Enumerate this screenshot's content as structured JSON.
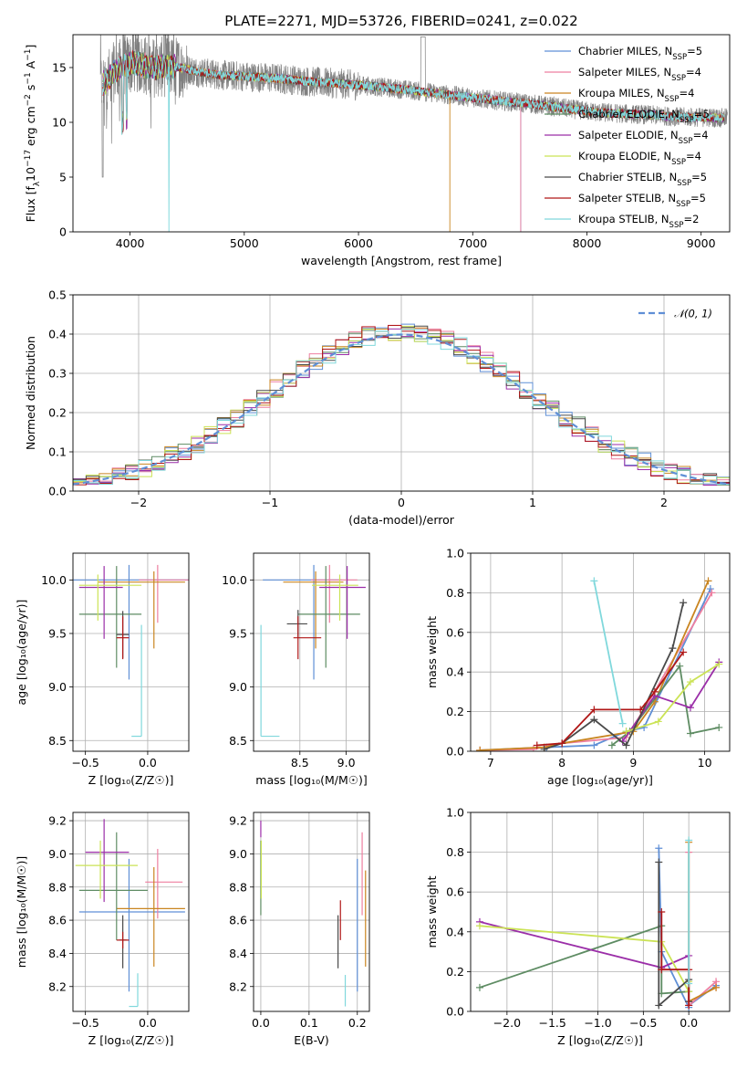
{
  "figure_title": "PLATE=2271, MJD=53726, FIBERID=0241, z=0.022",
  "colors": {
    "Chabrier MILES": "#5f8fd6",
    "Salpeter MILES": "#ee7fa0",
    "Kroupa MILES": "#c98520",
    "Chabrier ELODIE": "#5e8c63",
    "Salpeter ELODIE": "#9b2ea8",
    "Kroupa ELODIE": "#cbe355",
    "Chabrier STELIB": "#4a4a4a",
    "Salpeter STELIB": "#b01717",
    "Kroupa STELIB": "#80d8dc",
    "data": "#808080",
    "normal": "#5f8fd6",
    "orange_line": "#e07b3a"
  },
  "chart_data": [
    {
      "id": "spectrum",
      "type": "line",
      "title": "PLATE=2271, MJD=53726, FIBERID=0241, z=0.022",
      "xlabel": "wavelength [Angstrom, rest frame]",
      "ylabel_parts": [
        "Flux [f",
        "λ",
        "10",
        "−17",
        " erg cm",
        "−2",
        " s",
        "−1",
        " A",
        "−1",
        "]"
      ],
      "xlim": [
        3500,
        9250
      ],
      "ylim": [
        0,
        18
      ],
      "xticks": [
        4000,
        5000,
        6000,
        7000,
        8000,
        9000
      ],
      "yticks": [
        0,
        5,
        10,
        15
      ],
      "legend": [
        {
          "name": "Chabrier MILES",
          "nssp": "5"
        },
        {
          "name": "Salpeter MILES",
          "nssp": "4"
        },
        {
          "name": "Kroupa MILES",
          "nssp": "4"
        },
        {
          "name": "Chabrier ELODIE",
          "nssp": "5"
        },
        {
          "name": "Salpeter ELODIE",
          "nssp": "4"
        },
        {
          "name": "Kroupa ELODIE",
          "nssp": "4"
        },
        {
          "name": "Chabrier STELIB",
          "nssp": "5"
        },
        {
          "name": "Salpeter STELIB",
          "nssp": "5"
        },
        {
          "name": "Kroupa STELIB",
          "nssp": "2"
        }
      ],
      "continuum": {
        "x": [
          3760,
          3850,
          3950,
          4050,
          4200,
          4400,
          4600,
          4800,
          5000,
          5300,
          5600,
          6000,
          6400,
          6800,
          7200,
          7500,
          7800,
          8100,
          8500,
          8800,
          9200
        ],
        "y": [
          13.5,
          14.5,
          15.2,
          15.4,
          15.0,
          15.1,
          14.6,
          14.3,
          14.2,
          14.0,
          13.7,
          13.4,
          13.0,
          12.5,
          12.0,
          11.7,
          11.3,
          10.9,
          10.7,
          10.5,
          10.4
        ]
      },
      "model_cutoffs": {
        "Kroupa MILES": 6800,
        "Salpeter MILES": 7420,
        "Chabrier MILES": 7420
      }
    },
    {
      "id": "residuals",
      "type": "histogram",
      "xlabel": "(data-model)/error",
      "ylabel": "Normed distribution",
      "xlim": [
        -2.5,
        2.5
      ],
      "ylim": [
        0,
        0.5
      ],
      "xticks": [
        -2,
        -1,
        0,
        1,
        2
      ],
      "yticks": [
        0.0,
        0.1,
        0.2,
        0.3,
        0.4,
        0.5
      ],
      "bin_width": 0.1,
      "legend": [
        {
          "name": "𝒩(0, 1)"
        }
      ],
      "gaussian": {
        "mu": 0,
        "sigma": 1
      }
    },
    {
      "id": "age-vs-z",
      "type": "errorbar",
      "xlabel": "Z [log₁₀(Z/Z☉)]",
      "ylabel": "age  [log₁₀(age/yr)]",
      "xlim": [
        -0.6,
        0.33
      ],
      "ylim": [
        8.4,
        10.25
      ],
      "xticks": [
        -0.5,
        0.0
      ],
      "yticks": [
        8.5,
        9.0,
        9.5,
        10.0
      ],
      "points": [
        {
          "series": "Chabrier MILES",
          "x": -0.15,
          "y": 10.0,
          "xerr": [
            0.5,
            0.5
          ],
          "yerr": [
            0.93,
            0.14
          ]
        },
        {
          "series": "Salpeter MILES",
          "x": 0.08,
          "y": 10.0,
          "xerr": [
            0.15,
            0.25
          ],
          "yerr": [
            0.4,
            0.14
          ]
        },
        {
          "series": "Kroupa MILES",
          "x": 0.05,
          "y": 9.98,
          "xerr": [
            0.45,
            0.25
          ],
          "yerr": [
            0.62,
            0.1
          ]
        },
        {
          "series": "Chabrier ELODIE",
          "x": -0.25,
          "y": 9.68,
          "xerr": [
            0.3,
            0.2
          ],
          "yerr": [
            0.5,
            0.45
          ]
        },
        {
          "series": "Salpeter ELODIE",
          "x": -0.35,
          "y": 9.93,
          "xerr": [
            0.2,
            0.15
          ],
          "yerr": [
            0.48,
            0.2
          ]
        },
        {
          "series": "Kroupa ELODIE",
          "x": -0.4,
          "y": 9.95,
          "xerr": [
            0.15,
            0.35
          ],
          "yerr": [
            0.33,
            0.1
          ]
        },
        {
          "series": "Chabrier STELIB",
          "x": -0.2,
          "y": 9.49,
          "xerr": [
            0.05,
            0.05
          ],
          "yerr": [
            0.22,
            0.22
          ]
        },
        {
          "series": "Salpeter STELIB",
          "x": -0.2,
          "y": 9.46,
          "xerr": [
            0.05,
            0.05
          ],
          "yerr": [
            0.2,
            0.2
          ]
        },
        {
          "series": "Kroupa STELIB",
          "x": -0.05,
          "y": 8.54,
          "xerr": [
            0.08,
            0.0
          ],
          "yerr": [
            0.0,
            1.04
          ]
        }
      ]
    },
    {
      "id": "age-vs-mass",
      "type": "errorbar",
      "xlabel": "mass [log₁₀(M/M☉)]",
      "ylabel": "",
      "xlim": [
        8.0,
        9.25
      ],
      "ylim": [
        8.4,
        10.25
      ],
      "xticks": [
        8.5,
        9.0
      ],
      "yticks": [
        8.5,
        9.0,
        9.5,
        10.0
      ],
      "points": [
        {
          "series": "Chabrier MILES",
          "x": 8.65,
          "y": 10.0,
          "xerr": [
            0.55,
            0.3
          ],
          "yerr": [
            0.93,
            0.14
          ]
        },
        {
          "series": "Salpeter MILES",
          "x": 8.82,
          "y": 10.0,
          "xerr": [
            0.2,
            0.3
          ],
          "yerr": [
            0.4,
            0.14
          ]
        },
        {
          "series": "Kroupa MILES",
          "x": 8.67,
          "y": 9.98,
          "xerr": [
            0.35,
            0.3
          ],
          "yerr": [
            0.62,
            0.1
          ]
        },
        {
          "series": "Chabrier ELODIE",
          "x": 8.78,
          "y": 9.68,
          "xerr": [
            0.3,
            0.37
          ],
          "yerr": [
            0.5,
            0.45
          ]
        },
        {
          "series": "Salpeter ELODIE",
          "x": 9.01,
          "y": 9.93,
          "xerr": [
            0.3,
            0.2
          ],
          "yerr": [
            0.48,
            0.2
          ]
        },
        {
          "series": "Kroupa ELODIE",
          "x": 8.93,
          "y": 9.95,
          "xerr": [
            0.3,
            0.2
          ],
          "yerr": [
            0.33,
            0.1
          ]
        },
        {
          "series": "Chabrier STELIB",
          "x": 8.48,
          "y": 9.59,
          "xerr": [
            0.12,
            0.1
          ],
          "yerr": [
            0.13,
            0.13
          ]
        },
        {
          "series": "Salpeter STELIB",
          "x": 8.48,
          "y": 9.46,
          "xerr": [
            0.05,
            0.25
          ],
          "yerr": [
            0.2,
            0.2
          ]
        },
        {
          "series": "Kroupa STELIB",
          "x": 8.08,
          "y": 8.54,
          "xerr": [
            0.0,
            0.2
          ],
          "yerr": [
            0.0,
            1.04
          ]
        }
      ]
    },
    {
      "id": "mass-weight-vs-age",
      "type": "line",
      "xlabel": "age  [log₁₀(age/yr)]",
      "ylabel": "mass weight",
      "xlim": [
        6.72,
        10.35
      ],
      "ylim": [
        0,
        1.0
      ],
      "xticks": [
        7,
        8,
        9,
        10
      ],
      "yticks": [
        0.0,
        0.2,
        0.4,
        0.6,
        0.8,
        1.0
      ],
      "series": [
        {
          "name": "Chabrier MILES",
          "x": [
            6.85,
            7.78,
            8.45,
            8.9,
            9.15,
            10.08
          ],
          "y": [
            0.005,
            0.02,
            0.03,
            0.1,
            0.12,
            0.82
          ]
        },
        {
          "name": "Salpeter MILES",
          "x": [
            6.85,
            7.6,
            8.0,
            8.9,
            9.2,
            10.1
          ],
          "y": [
            0.005,
            0.01,
            0.04,
            0.07,
            0.24,
            0.8
          ]
        },
        {
          "name": "Kroupa MILES",
          "x": [
            6.85,
            7.75,
            8.0,
            9.0,
            9.3,
            10.05
          ],
          "y": [
            0.005,
            0.02,
            0.04,
            0.1,
            0.25,
            0.86
          ]
        },
        {
          "name": "Chabrier ELODIE",
          "x": [
            8.7,
            8.95,
            9.65,
            9.8,
            10.2
          ],
          "y": [
            0.03,
            0.1,
            0.43,
            0.09,
            0.12
          ]
        },
        {
          "name": "Salpeter ELODIE",
          "x": [
            8.85,
            9.3,
            9.8,
            10.2
          ],
          "y": [
            0.05,
            0.28,
            0.22,
            0.45
          ]
        },
        {
          "name": "Kroupa ELODIE",
          "x": [
            8.9,
            9.35,
            9.8,
            10.2
          ],
          "y": [
            0.1,
            0.15,
            0.35,
            0.44
          ]
        },
        {
          "name": "Chabrier STELIB",
          "x": [
            7.75,
            8.0,
            8.45,
            8.9,
            9.55,
            9.7
          ],
          "y": [
            0.01,
            0.04,
            0.16,
            0.03,
            0.52,
            0.75
          ]
        },
        {
          "name": "Salpeter STELIB",
          "x": [
            7.65,
            8.0,
            8.45,
            9.1,
            9.3,
            9.7
          ],
          "y": [
            0.03,
            0.04,
            0.21,
            0.21,
            0.3,
            0.5
          ]
        },
        {
          "name": "Kroupa STELIB",
          "x": [
            8.45,
            8.85
          ],
          "y": [
            0.86,
            0.14
          ]
        }
      ]
    },
    {
      "id": "mass-vs-z",
      "type": "errorbar",
      "xlabel": "Z [log₁₀(Z/Z☉)]",
      "ylabel": "mass [log₁₀(M/M☉)]",
      "xlim": [
        -0.6,
        0.33
      ],
      "ylim": [
        8.05,
        9.25
      ],
      "xticks": [
        -0.5,
        0.0
      ],
      "yticks": [
        8.2,
        8.4,
        8.6,
        8.8,
        9.0,
        9.2
      ],
      "points": [
        {
          "series": "Chabrier MILES",
          "x": -0.15,
          "y": 8.65,
          "xerr": [
            0.4,
            0.45
          ],
          "yerr": [
            0.48,
            0.32
          ]
        },
        {
          "series": "Salpeter MILES",
          "x": 0.08,
          "y": 8.83,
          "xerr": [
            0.1,
            0.2
          ],
          "yerr": [
            0.22,
            0.2
          ]
        },
        {
          "series": "Kroupa MILES",
          "x": 0.05,
          "y": 8.67,
          "xerr": [
            0.3,
            0.25
          ],
          "yerr": [
            0.35,
            0.25
          ]
        },
        {
          "series": "Chabrier ELODIE",
          "x": -0.25,
          "y": 8.78,
          "xerr": [
            0.3,
            0.25
          ],
          "yerr": [
            0.3,
            0.35
          ]
        },
        {
          "series": "Salpeter ELODIE",
          "x": -0.35,
          "y": 9.01,
          "xerr": [
            0.15,
            0.2
          ],
          "yerr": [
            0.3,
            0.2
          ]
        },
        {
          "series": "Kroupa ELODIE",
          "x": -0.38,
          "y": 8.93,
          "xerr": [
            0.2,
            0.3
          ],
          "yerr": [
            0.2,
            0.15
          ]
        },
        {
          "series": "Chabrier STELIB",
          "x": -0.2,
          "y": 8.48,
          "xerr": [
            0.03,
            0.03
          ],
          "yerr": [
            0.17,
            0.15
          ]
        },
        {
          "series": "Salpeter STELIB",
          "x": -0.2,
          "y": 8.48,
          "xerr": [
            0.05,
            0.05
          ],
          "yerr": [
            0.05,
            0.05
          ]
        },
        {
          "series": "Kroupa STELIB",
          "x": -0.08,
          "y": 8.08,
          "xerr": [
            0.07,
            0.0
          ],
          "yerr": [
            0.0,
            0.2
          ]
        }
      ]
    },
    {
      "id": "mass-vs-ebv",
      "type": "errorbar",
      "xlabel": "E(B-V)",
      "ylabel": "",
      "xlim": [
        -0.015,
        0.225
      ],
      "ylim": [
        8.05,
        9.25
      ],
      "xticks": [
        0.0,
        0.1,
        0.2
      ],
      "yticks": [
        8.2,
        8.4,
        8.6,
        8.8,
        9.0,
        9.2
      ],
      "points": [
        {
          "series": "Chabrier MILES",
          "x": 0.2,
          "y": 8.65,
          "yerr": [
            0.48,
            0.32
          ]
        },
        {
          "series": "Salpeter MILES",
          "x": 0.21,
          "y": 8.83,
          "yerr": [
            0.2,
            0.3
          ]
        },
        {
          "series": "Kroupa MILES",
          "x": 0.217,
          "y": 8.67,
          "yerr": [
            0.35,
            0.23
          ]
        },
        {
          "series": "Chabrier ELODIE",
          "x": 0.0,
          "y": 8.78,
          "yerr": [
            0.15,
            0.3
          ]
        },
        {
          "series": "Salpeter ELODIE",
          "x": 0.0,
          "y": 9.1,
          "yerr": [
            0.0,
            0.1
          ]
        },
        {
          "series": "Kroupa ELODIE",
          "x": 0.001,
          "y": 8.93,
          "yerr": [
            0.2,
            0.15
          ]
        },
        {
          "series": "Chabrier STELIB",
          "x": 0.16,
          "y": 8.48,
          "yerr": [
            0.17,
            0.15
          ]
        },
        {
          "series": "Salpeter STELIB",
          "x": 0.165,
          "y": 8.6,
          "yerr": [
            0.12,
            0.12
          ]
        },
        {
          "series": "Kroupa STELIB",
          "x": 0.175,
          "y": 8.15,
          "yerr": [
            0.07,
            0.12
          ]
        }
      ]
    },
    {
      "id": "mass-weight-vs-z",
      "type": "line",
      "xlabel": "Z [log₁₀(Z/Z☉)]",
      "ylabel": "mass weight",
      "xlim": [
        -2.4,
        0.45
      ],
      "ylim": [
        0,
        1.0
      ],
      "xticks": [
        -2.0,
        -1.5,
        -1.0,
        -0.5,
        0.0
      ],
      "yticks": [
        0.0,
        0.2,
        0.4,
        0.6,
        0.8,
        1.0
      ],
      "series": [
        {
          "name": "Chabrier MILES",
          "x": [
            -0.33,
            -0.3,
            0.0,
            0.0,
            0.3
          ],
          "y": [
            0.82,
            0.3,
            0.02,
            0.03,
            0.13
          ]
        },
        {
          "name": "Salpeter MILES",
          "x": [
            0.0,
            0.0,
            0.3,
            0.3
          ],
          "y": [
            0.8,
            0.03,
            0.15,
            0.12
          ]
        },
        {
          "name": "Kroupa MILES",
          "x": [
            0.0,
            0.0,
            0.3
          ],
          "y": [
            0.85,
            0.05,
            0.12
          ]
        },
        {
          "name": "Chabrier ELODIE",
          "x": [
            -2.3,
            -0.3,
            -0.3,
            0.0
          ],
          "y": [
            0.12,
            0.43,
            0.09,
            0.1
          ]
        },
        {
          "name": "Salpeter ELODIE",
          "x": [
            -2.3,
            -0.3,
            0.0,
            0.0
          ],
          "y": [
            0.45,
            0.22,
            0.28,
            0.05
          ]
        },
        {
          "name": "Kroupa ELODIE",
          "x": [
            -2.3,
            -0.3,
            0.0,
            0.0
          ],
          "y": [
            0.43,
            0.35,
            0.1,
            0.15
          ]
        },
        {
          "name": "Chabrier STELIB",
          "x": [
            -0.33,
            -0.33,
            0.0,
            0.0
          ],
          "y": [
            0.75,
            0.03,
            0.16,
            0.05
          ]
        },
        {
          "name": "Salpeter STELIB",
          "x": [
            -0.3,
            -0.3,
            0.0,
            0.0
          ],
          "y": [
            0.5,
            0.21,
            0.21,
            0.03
          ]
        },
        {
          "name": "Kroupa STELIB",
          "x": [
            0.0,
            0.0
          ],
          "y": [
            0.86,
            0.14
          ]
        }
      ]
    }
  ]
}
